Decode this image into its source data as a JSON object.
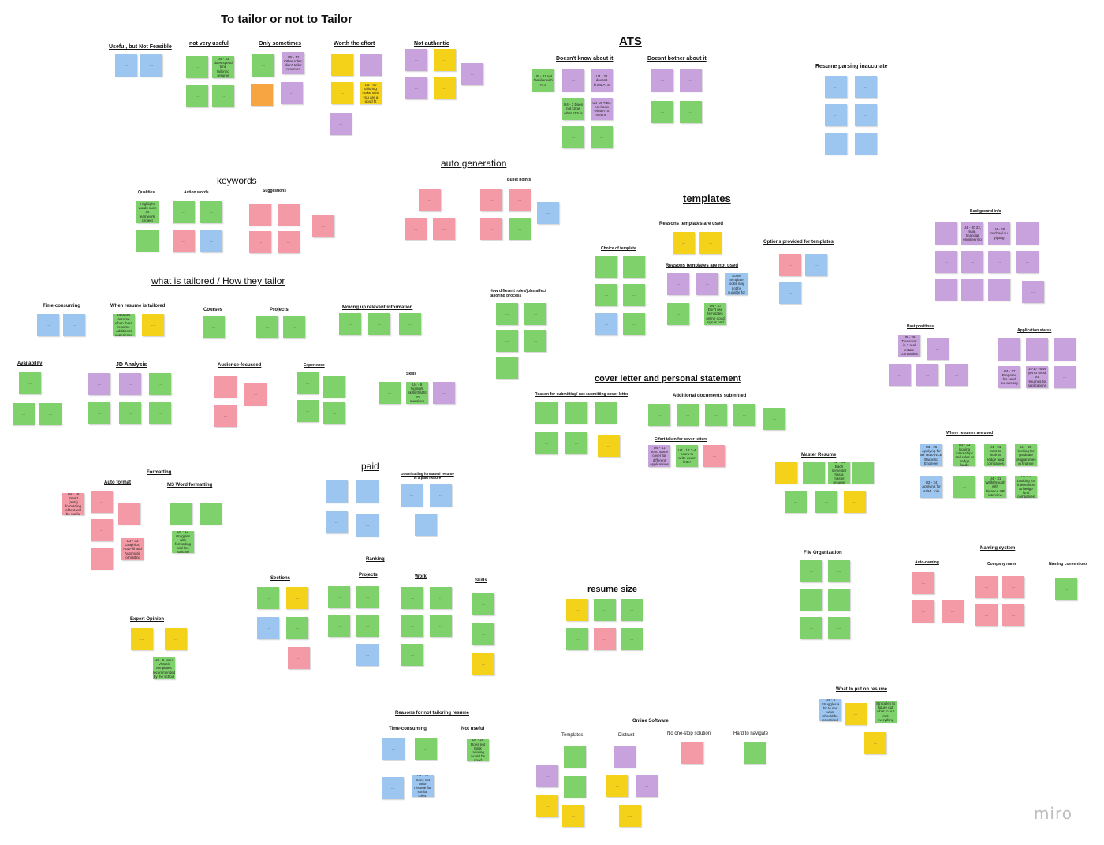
{
  "board": {
    "logo": "miro",
    "headings": {
      "tailor": "To tailor or not to Tailor",
      "ats": "ATS",
      "auto_generation": "auto generation",
      "keywords": "keywords",
      "what_is_tailored": "what is tailored / How they tailor",
      "templates": "templates",
      "cover_letter": "cover letter and personal statement",
      "paid": "paid",
      "resume_size": "resume size"
    },
    "subheadings": {
      "useful_not_feasible": "Useful, but Not Feasible",
      "not_very_useful": "not very useful",
      "only_sometimes": "Only sometimes",
      "worth_the_effort": "Worth the effort",
      "not_authentic": "Not authentic",
      "doesnt_know_ats": "Doesn't know about it",
      "doesnt_bother_ats": "Doesnt bother about it",
      "resume_parsing": "Resume parsing inaccurate",
      "qualities": "Qualities",
      "action_words": "Action words",
      "suggestions": "Suggestions",
      "bullet_points": "Bullet points",
      "how_roles_affect": "How different roles/jobs affect tailoring process",
      "time_consuming": "Time-consuming",
      "when_tailored": "When resume is tailored",
      "courses": "Courses",
      "projects": "Projects",
      "moving_up": "Moving up relevant information",
      "availability": "Availability",
      "jd_analysis": "JD Analysis",
      "audience_focussed": "Audience-focussed",
      "experience": "Experience",
      "skills": "Skills",
      "reasons_templates_used": "Reasons templates are  used",
      "choice_of_template": "Choice of template",
      "reasons_templates_not_used": "Reasons templates are not used",
      "options_templates": "Options provided for templates",
      "background_info": "Background info",
      "past_positions": "Past positions",
      "application_status": "Application status",
      "reason_cover_letter": "Reason for submitting/ not submitting cover letter",
      "additional_docs": "Additional documents submitted",
      "effort_cover": "Effort taken for cover letters",
      "master_resume": "Master Resume",
      "where_used": "Where resumes are used",
      "formatting": "Formatting",
      "auto_format": "Auto format",
      "ms_word": "MS Word formatting",
      "downloading": "Downloading formatted resume is a paid feature",
      "ranking": "Ranking",
      "sections": "Sections",
      "rank_projects": "Projects",
      "work": "Work",
      "rank_skills": "Skills",
      "expert_opinion": "Expert Opinion",
      "file_org": "File Organization",
      "naming_system": "Naming system",
      "auto_naming": "Auto-naming",
      "company_name": "Company name",
      "naming_conventions": "Naming conventions",
      "what_to_put": "What to put on resume",
      "reasons_not_tailoring": "Reasons for not tailoring resume",
      "rn_time_consuming": "Time-consuming",
      "rn_not_useful": "Not useful",
      "online_software": "Online Software",
      "os_templates": "Templates",
      "os_distrust": "Distrust",
      "os_no_one_stop": "No one-stop solution",
      "os_hard_navigate": "Hard to navigate"
    },
    "notes": {
      "u4_31": "U5 - 31 not familiar with ATS",
      "u4_32": "U4 - 32 doesn't know ATS",
      "u4_3": "U4 - 3 Does not know what ATS is",
      "u4_19": "U4-19 \"I Do not know what ATS means\"",
      "u4_33": "U4 - 33 does spend time tailoring resume",
      "u5_12": "U5 - 12 Other roles; didn't tailor resumes",
      "u4_30": "U4 - 30 22, male, financial engineering",
      "u4_29": "U4 - 29 michael xu yiyang",
      "u3_25": "U3 - 25 Applying for BYTEDANCE Backend Engineer",
      "u3_24": "U3 - 24 Applying for AI/ML role",
      "u4_27": "U4 - 27 Prepared his send out already",
      "u4_17": "U4-17 Have yet to send out resumes for applications",
      "u4_41": "U4 - 41 send same cover for different applications",
      "u2_17": "U2 - 17 3-4 hours to write cover letter",
      "u4_26": "U4 - 26 Does not think tailoring would be good",
      "u3_21": "U3 - 21 Does not tailor resume for similar roles.",
      "u2_31": "U2 - 31 Each semester has a master resume",
      "u4_4": "U4 - 4 Struggles a bit to see what should be prioritised",
      "u2_5": "U2 - 5 Struggles to figure out what to put in it everything in one page",
      "u5_40": "U5 - 40 tailoring make sure you are a good fit",
      "u5_29": "U5 - 29 Treasurer in 2 real estate companies",
      "u4_37": "U4 - 37 Don't use templates online good sign is bad",
      "u5_7": "U5 - 7 Some template looks may not be suitable for the job",
      "u4_9": "U4 - 9 highlight skills that fit JD mentions",
      "u2_16": "U2 - 16 Smart (auto) formatting of text will be useful",
      "u3_33": "U3 - 33 Graphics, Auto-fill and Automatic formatting",
      "u4_12": "U4 - 12 struggles with formatting and line spacing",
      "u5_5": "U5 - 5 Uses VMock templates recommended by the school",
      "u4_28": "U4 - 28 looking for graduate programmes in finance",
      "u4_2": "U4 - 2 Looking for internships at hedge fund companies",
      "u4_31b": "U4 - 31 Walkthrough with Binance HR interview",
      "u4_21": "U4 - 21 want to work in hedge fund companies",
      "u3_33b": "U3 - 33 looking internships and roles at hedge funds",
      "u4_36": "U4 - 36 Highlight words such as teamwork, project management",
      "u2_19": "U2 - 19 Updates resume when there is some additional experience etc"
    },
    "filler": "..."
  }
}
